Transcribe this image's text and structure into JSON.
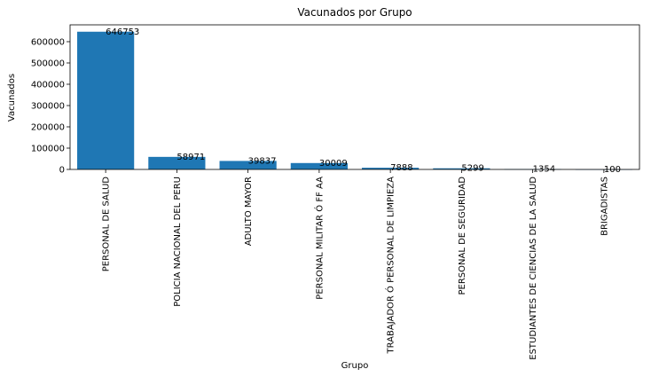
{
  "chart_data": {
    "type": "bar",
    "title": "Vacunados por Grupo",
    "xlabel": "Grupo",
    "ylabel": "Vacunados",
    "categories": [
      "PERSONAL DE SALUD",
      "POLICIA NACIONAL DEL PERU",
      "ADULTO MAYOR",
      "PERSONAL MILITAR Ó FF AA",
      "TRABAJADOR Ó PERSONAL DE LIMPIEZA",
      "PERSONAL DE SEGURIDAD",
      "ESTUDIANTES DE CIENCIAS DE LA SALUD",
      "BRIGADISTAS"
    ],
    "values": [
      646753,
      58971,
      39837,
      30009,
      7888,
      5299,
      1354,
      100
    ],
    "value_labels": [
      "646753",
      "58971",
      "39837",
      "30009",
      "7888",
      "5299",
      "1354",
      "100"
    ],
    "yticks": [
      0,
      100000,
      200000,
      300000,
      400000,
      500000,
      600000
    ],
    "ytick_labels": [
      "0",
      "100000",
      "200000",
      "300000",
      "400000",
      "500000",
      "600000"
    ],
    "ylim": [
      0,
      679090
    ],
    "bar_color": "#1f77b4",
    "grid": false,
    "legend": "none"
  }
}
